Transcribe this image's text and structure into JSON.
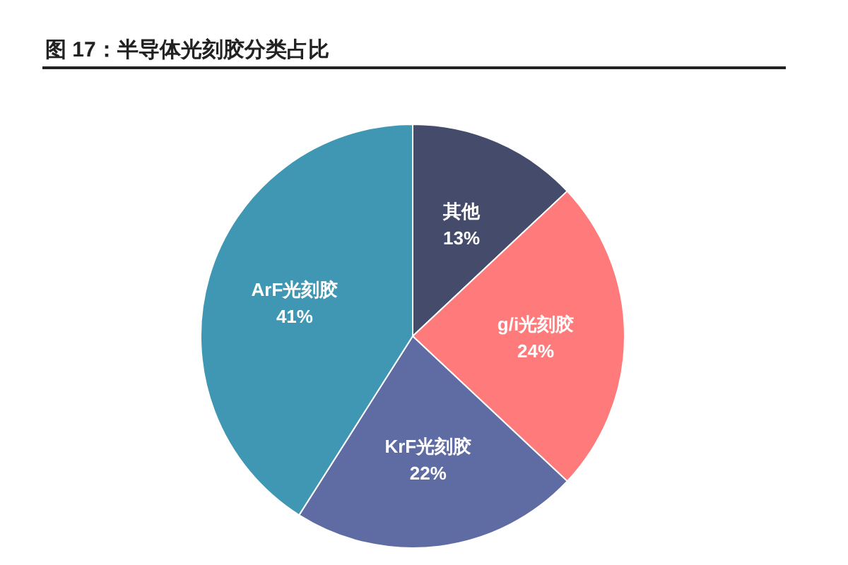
{
  "chart_data": {
    "type": "pie",
    "title": "图 17：半导体光刻胶分类占比",
    "categories": [
      "其他",
      "g/i光刻胶",
      "KrF光刻胶",
      "ArF光刻胶"
    ],
    "values": [
      13,
      24,
      22,
      41
    ],
    "colors": [
      "#454b6b",
      "#ff7b7b",
      "#5f6ba3",
      "#3f97b3"
    ],
    "value_labels": [
      "13%",
      "24%",
      "22%",
      "41%"
    ]
  }
}
